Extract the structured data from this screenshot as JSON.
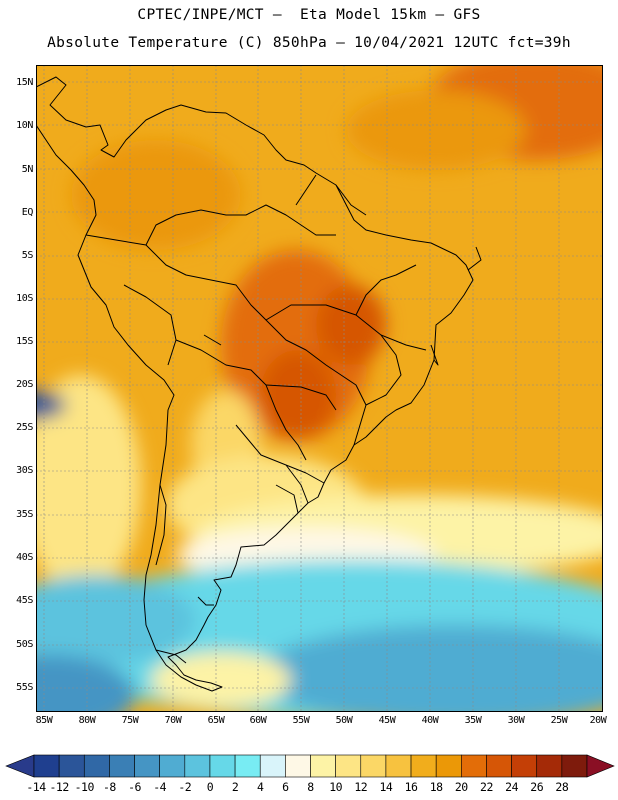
{
  "header": {
    "line1": "CPTEC/INPE/MCT –  Eta Model 15km – GFS",
    "line2": "Absolute Temperature (C) 850hPa – 10/04/2021 12UTC fct=39h"
  },
  "map": {
    "region": "South America",
    "lat_labels": [
      "15N",
      "10N",
      "5N",
      "EQ",
      "5S",
      "10S",
      "15S",
      "20S",
      "25S",
      "30S",
      "35S",
      "40S",
      "45S",
      "50S",
      "55S"
    ],
    "lon_labels": [
      "85W",
      "80W",
      "75W",
      "70W",
      "65W",
      "60W",
      "55W",
      "50W",
      "45W",
      "40W",
      "35W",
      "30W",
      "25W",
      "20W"
    ],
    "extent": {
      "lat_north": 16.5,
      "lat_south": -57.5,
      "lon_west": -86,
      "lon_east": -20
    }
  },
  "colorbar": {
    "ticks": [
      "-14",
      "-12",
      "-10",
      "-8",
      "-6",
      "-4",
      "-2",
      "0",
      "2",
      "4",
      "6",
      "8",
      "10",
      "12",
      "14",
      "16",
      "18",
      "20",
      "22",
      "24",
      "26",
      "28"
    ],
    "colors": [
      "#1f3f8f",
      "#2b5599",
      "#3068a6",
      "#3a7fb5",
      "#4595c4",
      "#50acd2",
      "#5cc3de",
      "#66d8e8",
      "#78ecf3",
      "#d9f4fa",
      "#fef8e6",
      "#fdf3a6",
      "#fde585",
      "#fbd766",
      "#f7c23f",
      "#f1ad1c",
      "#eb9807",
      "#e36d08",
      "#d65606",
      "#c43f06",
      "#a42a07",
      "#7e1b0c"
    ],
    "under_color": "#293b8b",
    "over_color": "#8a0f24"
  }
}
